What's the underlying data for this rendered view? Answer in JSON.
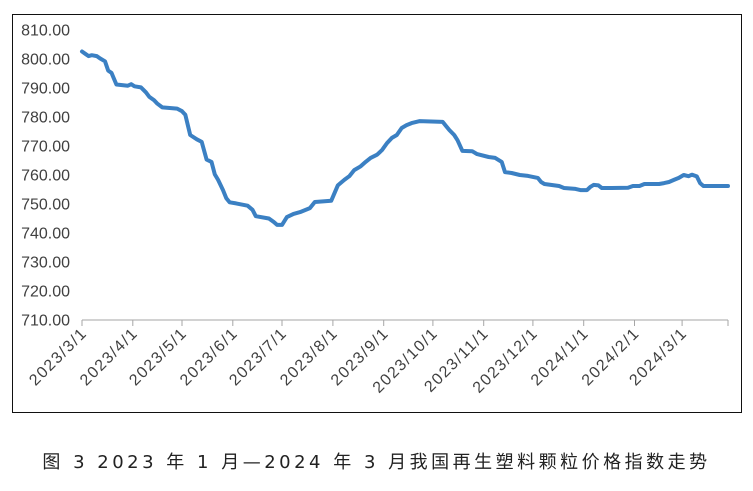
{
  "figure": {
    "caption": "图 3 2023 年 1 月—2024 年 3 月我国再生塑料颗粒价格指数走势"
  },
  "chart_data": {
    "type": "line",
    "xlim": [
      "2023-03-01",
      "2024-03-29"
    ],
    "ylim": [
      710,
      810
    ],
    "grid": false,
    "legend": "none",
    "y_tick_labels": [
      "810.00",
      "800.00",
      "790.00",
      "780.00",
      "770.00",
      "760.00",
      "750.00",
      "740.00",
      "730.00",
      "720.00",
      "710.00"
    ],
    "x_tick_labels": [
      "2023/3/1",
      "2023/4/1",
      "2023/5/1",
      "2023/6/1",
      "2023/7/1",
      "2023/8/1",
      "2023/9/1",
      "2023/10/1",
      "2023/11/1",
      "2023/12/1",
      "2024/1/1",
      "2024/2/1",
      "2024/3/1"
    ],
    "series": [
      {
        "color": "#3b80c3",
        "x": [
          "2023-03-01",
          "2023-03-03",
          "2023-03-05",
          "2023-03-07",
          "2023-03-10",
          "2023-03-12",
          "2023-03-15",
          "2023-03-17",
          "2023-03-19",
          "2023-03-22",
          "2023-03-29",
          "2023-03-31",
          "2023-04-02",
          "2023-04-06",
          "2023-04-09",
          "2023-04-11",
          "2023-04-14",
          "2023-04-16",
          "2023-04-19",
          "2023-04-28",
          "2023-05-01",
          "2023-05-03",
          "2023-05-06",
          "2023-05-10",
          "2023-05-13",
          "2023-05-16",
          "2023-05-19",
          "2023-05-21",
          "2023-05-23",
          "2023-05-26",
          "2023-05-28",
          "2023-05-30",
          "2023-06-03",
          "2023-06-10",
          "2023-06-13",
          "2023-06-15",
          "2023-06-23",
          "2023-06-26",
          "2023-06-28",
          "2023-07-01",
          "2023-07-04",
          "2023-07-08",
          "2023-07-12",
          "2023-07-15",
          "2023-07-18",
          "2023-07-21",
          "2023-07-31",
          "2023-08-04",
          "2023-08-08",
          "2023-08-11",
          "2023-08-14",
          "2023-08-18",
          "2023-08-21",
          "2023-08-24",
          "2023-08-28",
          "2023-08-31",
          "2023-09-03",
          "2023-09-06",
          "2023-09-09",
          "2023-09-12",
          "2023-09-15",
          "2023-09-18",
          "2023-09-23",
          "2023-10-07",
          "2023-10-09",
          "2023-10-11",
          "2023-10-14",
          "2023-10-16",
          "2023-10-19",
          "2023-10-25",
          "2023-10-28",
          "2023-11-04",
          "2023-11-08",
          "2023-11-12",
          "2023-11-14",
          "2023-11-18",
          "2023-11-23",
          "2023-11-28",
          "2023-12-04",
          "2023-12-06",
          "2023-12-08",
          "2023-12-12",
          "2023-12-17",
          "2023-12-20",
          "2023-12-27",
          "2023-12-30",
          "2024-01-03",
          "2024-01-05",
          "2024-01-07",
          "2024-01-10",
          "2024-01-12",
          "2024-01-18",
          "2024-01-28",
          "2024-01-31",
          "2024-02-04",
          "2024-02-07",
          "2024-02-16",
          "2024-02-19",
          "2024-02-22",
          "2024-02-25",
          "2024-02-28",
          "2024-03-02",
          "2024-03-05",
          "2024-03-07",
          "2024-03-10",
          "2024-03-12",
          "2024-03-14",
          "2024-03-29"
        ],
        "y": [
          802.6,
          801.8,
          801.0,
          801.3,
          801.0,
          800.2,
          799.2,
          796.0,
          795.2,
          791.2,
          790.8,
          791.3,
          790.6,
          790.2,
          788.5,
          787.0,
          785.8,
          784.6,
          783.3,
          782.9,
          782.0,
          780.8,
          773.8,
          772.3,
          771.4,
          765.3,
          764.5,
          760.2,
          758.3,
          754.8,
          752.0,
          750.6,
          750.2,
          749.4,
          748.0,
          745.8,
          745.0,
          743.8,
          742.8,
          742.8,
          745.5,
          746.6,
          747.2,
          747.9,
          748.6,
          750.7,
          751.1,
          756.4,
          758.3,
          759.6,
          761.7,
          763.0,
          764.5,
          765.9,
          767.0,
          768.6,
          771.0,
          772.8,
          773.8,
          776.2,
          777.2,
          777.9,
          778.6,
          778.3,
          776.9,
          775.5,
          773.8,
          772.0,
          768.3,
          768.2,
          767.2,
          766.2,
          765.9,
          764.5,
          761.0,
          760.7,
          760.0,
          759.7,
          759.0,
          757.6,
          756.9,
          756.6,
          756.2,
          755.5,
          755.2,
          754.8,
          754.8,
          755.9,
          756.6,
          756.4,
          755.5,
          755.5,
          755.6,
          756.2,
          756.2,
          756.9,
          756.9,
          757.2,
          757.6,
          758.3,
          759.0,
          760.0,
          759.6,
          760.1,
          759.5,
          757.2,
          756.2,
          756.2
        ]
      }
    ]
  }
}
